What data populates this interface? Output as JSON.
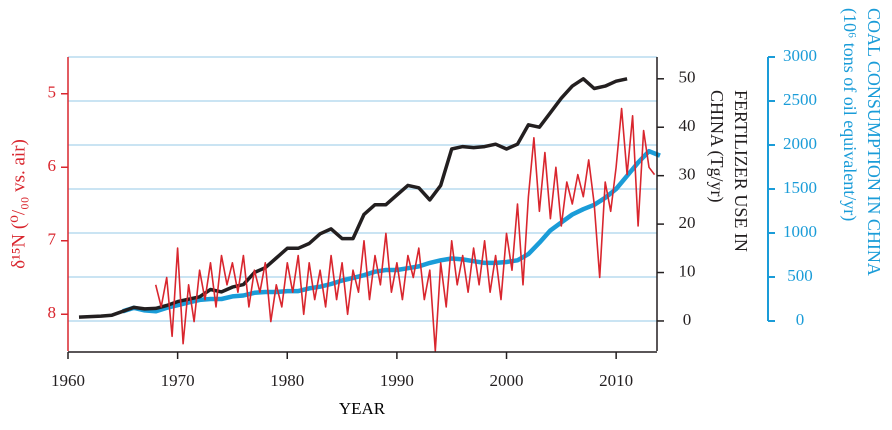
{
  "chart_data": {
    "type": "line",
    "xlabel": "YEAR",
    "ylabel": "δ¹⁵N (⁰/₀₀ vs. air)",
    "y2label": [
      "FERTILIZER USE IN",
      "CHINA (Tg/yr)"
    ],
    "y3label": [
      "COAL CONSUMPTION IN CHINA",
      "(10⁶ tons of oil equivalent/yr)"
    ],
    "xlim": [
      1960,
      2014
    ],
    "xticks": [
      1960,
      1970,
      1980,
      1990,
      2000,
      2010
    ],
    "ylim": [
      8.5,
      4.5
    ],
    "yticks": [
      5,
      6,
      7,
      8
    ],
    "ycolor": "#d9262e",
    "y2lim": [
      -6.2,
      54.5
    ],
    "y2ticks": [
      0,
      10,
      20,
      30,
      40,
      50
    ],
    "y2color": "#231f20",
    "y3lim": [
      -341,
      3000
    ],
    "y3ticks": [
      0,
      500,
      1000,
      1500,
      2000,
      2500,
      3000
    ],
    "y3color": "#1a9cd8",
    "grid": true,
    "gridcolor": "#b9dcef",
    "series": [
      {
        "color": "#231f20",
        "axis": "y2",
        "width": 3.5,
        "x": [
          1961,
          1962,
          1963,
          1964,
          1965,
          1966,
          1967,
          1968,
          1969,
          1970,
          1971,
          1972,
          1973,
          1974,
          1975,
          1976,
          1977,
          1978,
          1979,
          1980,
          1981,
          1982,
          1983,
          1984,
          1985,
          1986,
          1987,
          1988,
          1989,
          1990,
          1991,
          1992,
          1993,
          1994,
          1995,
          1996,
          1997,
          1998,
          1999,
          2000,
          2001,
          2002,
          2003,
          2004,
          2005,
          2006,
          2007,
          2008,
          2009,
          2010,
          2011
        ],
        "values": [
          0.8,
          0.9,
          1,
          1.2,
          2,
          2.8,
          2.5,
          2.6,
          3.2,
          4,
          4.5,
          5,
          6.5,
          6,
          7,
          7.5,
          10,
          11,
          13,
          15,
          15,
          16,
          18,
          19,
          17,
          17,
          22,
          24,
          24,
          26,
          28,
          27.5,
          25,
          28,
          35.5,
          36,
          35.8,
          36,
          36.5,
          35.5,
          36.5,
          40.5,
          40,
          43,
          46,
          48.5,
          50,
          48,
          48.5,
          49.5,
          50
        ]
      },
      {
        "color": "#1a9cd8",
        "axis": "y3",
        "width": 4.5,
        "x": [
          1965,
          1966,
          1967,
          1968,
          1969,
          1970,
          1971,
          1972,
          1973,
          1974,
          1975,
          1976,
          1977,
          1978,
          1979,
          1980,
          1981,
          1982,
          1983,
          1984,
          1985,
          1986,
          1987,
          1988,
          1989,
          1990,
          1991,
          1992,
          1993,
          1994,
          1995,
          1996,
          1997,
          1998,
          1999,
          2000,
          2001,
          2002,
          2003,
          2004,
          2005,
          2006,
          2007,
          2008,
          2009,
          2010,
          2011,
          2012,
          2013,
          2014
        ],
        "values": [
          110,
          150,
          120,
          110,
          150,
          180,
          210,
          240,
          250,
          250,
          280,
          290,
          320,
          330,
          330,
          340,
          340,
          370,
          390,
          420,
          460,
          490,
          520,
          560,
          580,
          580,
          600,
          620,
          660,
          690,
          710,
          700,
          680,
          660,
          660,
          670,
          690,
          760,
          890,
          1030,
          1120,
          1210,
          1270,
          1320,
          1400,
          1500,
          1650,
          1800,
          1930,
          1880
        ]
      },
      {
        "color": "#d9262e",
        "axis": "y",
        "width": 1.6,
        "x": [
          1968,
          1968.5,
          1969,
          1969.5,
          1970,
          1970.5,
          1971,
          1971.5,
          1972,
          1972.5,
          1973,
          1973.5,
          1974,
          1974.5,
          1975,
          1975.5,
          1976,
          1976.5,
          1977,
          1977.5,
          1978,
          1978.5,
          1979,
          1979.5,
          1980,
          1980.5,
          1981,
          1981.5,
          1982,
          1982.5,
          1983,
          1983.5,
          1984,
          1984.5,
          1985,
          1985.5,
          1986,
          1986.5,
          1987,
          1987.5,
          1988,
          1988.5,
          1989,
          1989.5,
          1990,
          1990.5,
          1991,
          1991.5,
          1992,
          1992.5,
          1993,
          1993.5,
          1994,
          1994.5,
          1995,
          1995.5,
          1996,
          1996.5,
          1997,
          1997.5,
          1998,
          1998.5,
          1999,
          1999.5,
          2000,
          2000.5,
          2001,
          2001.5,
          2002,
          2002.5,
          2003,
          2003.5,
          2004,
          2004.5,
          2005,
          2005.5,
          2006,
          2006.5,
          2007,
          2007.5,
          2008,
          2008.5,
          2009,
          2009.5,
          2010,
          2010.5,
          2011,
          2011.5,
          2012,
          2012.5,
          2013,
          2013.5
        ],
        "values": [
          7.6,
          7.9,
          7.5,
          8.3,
          7.1,
          8.4,
          7.6,
          8.1,
          7.4,
          7.8,
          7.3,
          7.9,
          7.2,
          7.6,
          7.3,
          7.7,
          7.2,
          7.9,
          7.4,
          7.7,
          7.3,
          8.1,
          7.6,
          7.9,
          7.3,
          7.7,
          7.2,
          8.0,
          7.3,
          7.8,
          7.4,
          7.9,
          7.2,
          7.8,
          7.3,
          8.0,
          7.4,
          7.7,
          7.0,
          7.8,
          7.2,
          7.6,
          6.9,
          7.7,
          7.3,
          7.8,
          7.2,
          7.5,
          7.1,
          7.8,
          7.4,
          8.5,
          7.3,
          7.9,
          7.0,
          7.6,
          7.2,
          7.7,
          7.1,
          7.6,
          7.0,
          7.7,
          7.2,
          7.8,
          6.9,
          7.4,
          6.5,
          7.6,
          6.4,
          5.6,
          6.6,
          5.8,
          6.7,
          6.0,
          6.8,
          6.2,
          6.5,
          6.1,
          6.4,
          5.9,
          6.5,
          7.5,
          6.2,
          6.6,
          6.0,
          5.2,
          6.1,
          5.3,
          6.8,
          5.5,
          6.0,
          6.1
        ]
      }
    ]
  }
}
